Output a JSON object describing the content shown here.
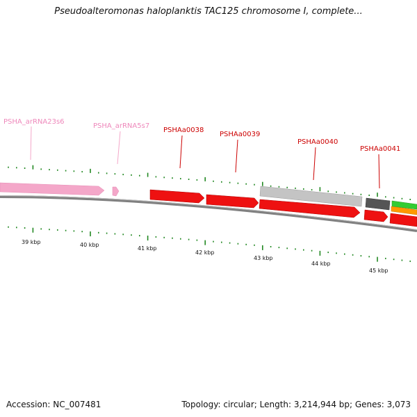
{
  "title": "Pseudoalteromonas haloplanktis TAC125 chromosome I, complete...",
  "footer": {
    "accession": "Accession: NC_007481",
    "summary": "Topology: circular; Length: 3,214,944 bp; Genes: 3,073"
  },
  "colors": {
    "rna": "#f4a7c9",
    "cds": "#ee1111",
    "gene_gray": "#c4c4c4",
    "gene_dark": "#555555",
    "green": "#33cc33",
    "orange": "#ff9900",
    "tick": "#228822",
    "label_rna": "#ee88bb",
    "label_cds": "#cc0000"
  },
  "kbp_labels": [
    "39 kbp",
    "40 kbp",
    "41 kbp",
    "42 kbp",
    "43 kbp",
    "44 kbp",
    "45 kbp"
  ],
  "features": [
    {
      "label": "PSHA_arRNA23s6",
      "type": "rna"
    },
    {
      "label": "PSHA_arRNA5s7",
      "type": "rna"
    },
    {
      "label": "PSHAa0038",
      "type": "cds"
    },
    {
      "label": "PSHAa0039",
      "type": "cds"
    },
    {
      "label": "PSHAa0040",
      "type": "cds"
    },
    {
      "label": "PSHAa0041",
      "type": "cds"
    }
  ]
}
